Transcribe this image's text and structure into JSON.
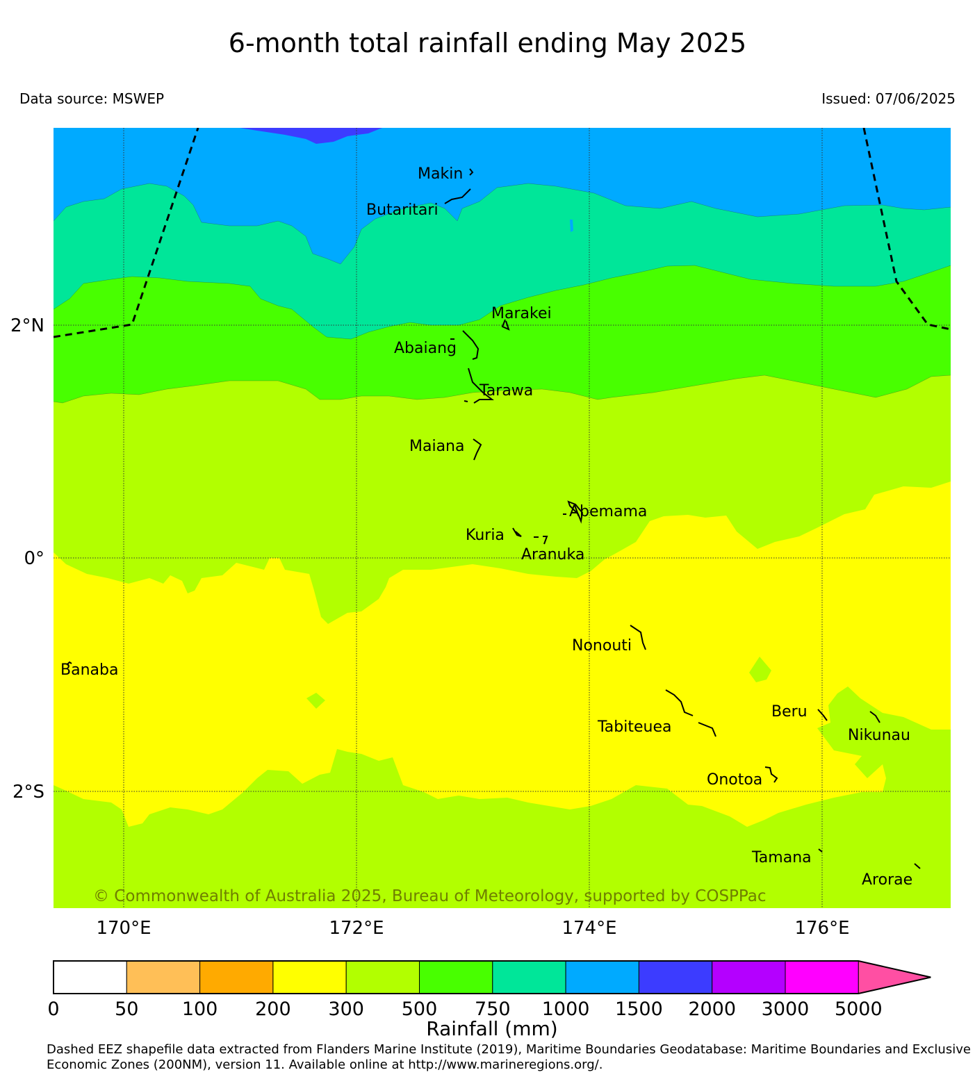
{
  "title": "6-month total rainfall ending May 2025",
  "data_source": "Data source: MSWEP",
  "issued": "Issued: 07/06/2025",
  "latitude_labels": [
    "2°N",
    "0°",
    "2°S"
  ],
  "longitude_labels": [
    "170°E",
    "172°E",
    "174°E",
    "176°E"
  ],
  "islands": [
    "Makin",
    "Butaritari",
    "Marakei",
    "Abaiang",
    "Tarawa",
    "Maiana",
    "Abemama",
    "Kuria",
    "Aranuka",
    "Banaba",
    "Nonouti",
    "Tabiteuea",
    "Beru",
    "Nikunau",
    "Onotoa",
    "Tamana",
    "Arorae"
  ],
  "copyright": "© Commonwealth of Australia 2025, Bureau of Meteorology, supported by COSPPac",
  "colorbar": {
    "label": "Rainfall (mm)",
    "ticks": [
      "0",
      "50",
      "100",
      "200",
      "300",
      "500",
      "750",
      "1000",
      "1500",
      "2000",
      "3000",
      "5000"
    ],
    "colors": [
      "#ffffff",
      "#ffbf57",
      "#ffaa00",
      "#ffff00",
      "#b2ff00",
      "#48ff00",
      "#00e699",
      "#00aaff",
      "#3c3cff",
      "#b400ff",
      "#ff00ff",
      "#ff4fa3"
    ]
  },
  "zone_colors": {
    "r1500_2000": "#3c3cff",
    "r1000_1500": "#00aaff",
    "r750_1000": "#00e699",
    "r500_750": "#48ff00",
    "r300_500": "#b2ff00",
    "r200_300": "#ffff00"
  },
  "footnote": "Dashed EEZ shapefile data extracted from Flanders Marine Institute (2019), Maritime Boundaries Geodatabase: Maritime Boundaries and Exclusive Economic Zones (200NM), version 11. Available online at http://www.marineregions.org/."
}
